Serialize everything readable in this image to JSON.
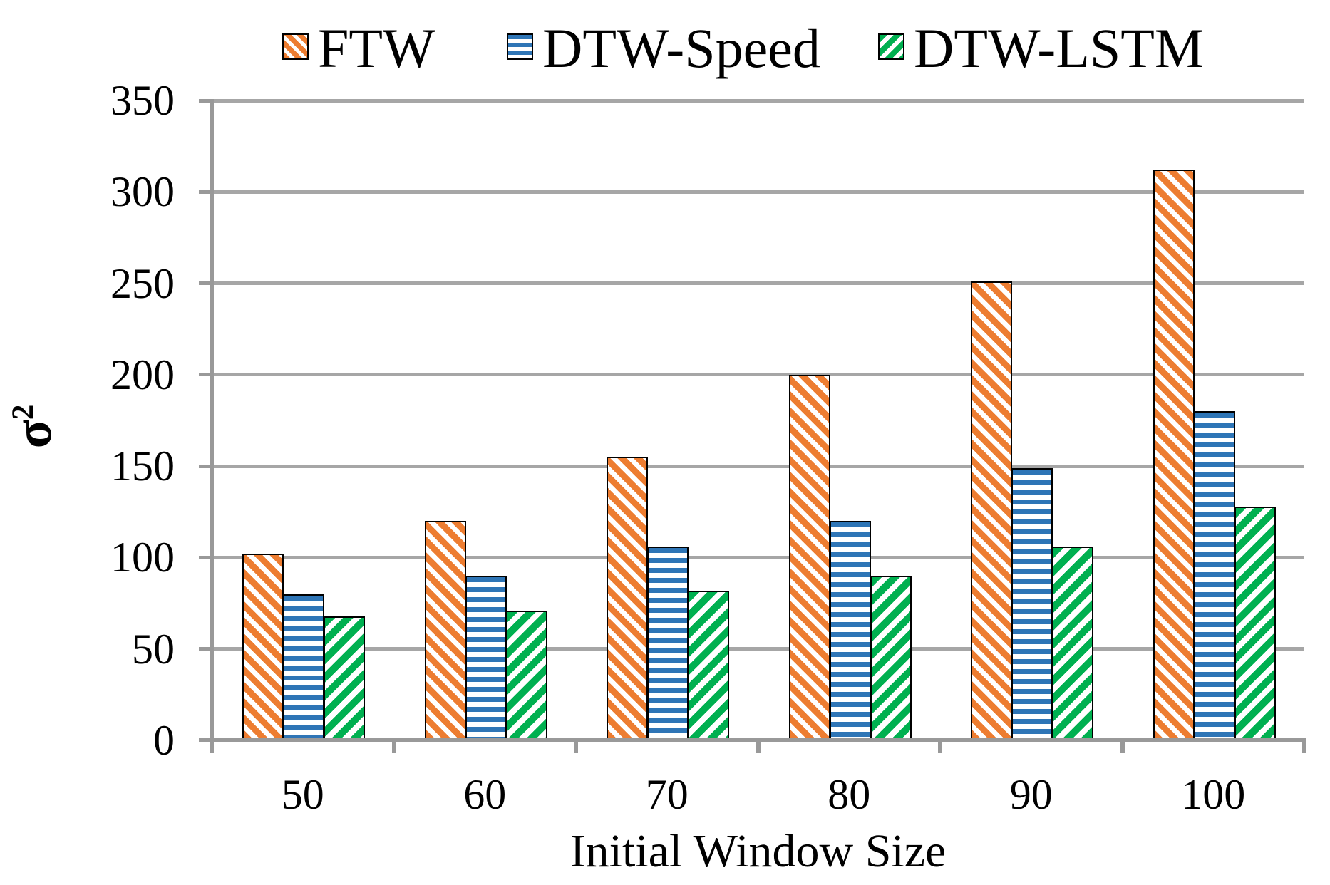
{
  "chart_data": {
    "type": "bar",
    "categories": [
      "50",
      "60",
      "70",
      "80",
      "90",
      "100"
    ],
    "series": [
      {
        "name": "FTW",
        "values": [
          102,
          120,
          155,
          200,
          251,
          312
        ],
        "color": "#ED7D31",
        "pattern": "diagonal-down"
      },
      {
        "name": "DTW-Speed",
        "values": [
          80,
          90,
          106,
          120,
          149,
          180
        ],
        "color": "#2E75B6",
        "pattern": "horizontal"
      },
      {
        "name": "DTW-LSTM",
        "values": [
          68,
          71,
          82,
          90,
          106,
          128
        ],
        "color": "#00B050",
        "pattern": "diagonal-up"
      }
    ],
    "xlabel": "Initial Window Size",
    "ylabel": "σ²",
    "ylabel_sigma": "σ",
    "ylabel_exponent": "2",
    "ylim": [
      0,
      350
    ],
    "ytick_step": 50,
    "yticks": [
      "0",
      "50",
      "100",
      "150",
      "200",
      "250",
      "300",
      "350"
    ],
    "grid": true,
    "legend_position": "top",
    "axis_color": "#999999",
    "grid_color": "#A6A6A6",
    "bar_border_color": "#000000",
    "text_color": "#000000"
  }
}
